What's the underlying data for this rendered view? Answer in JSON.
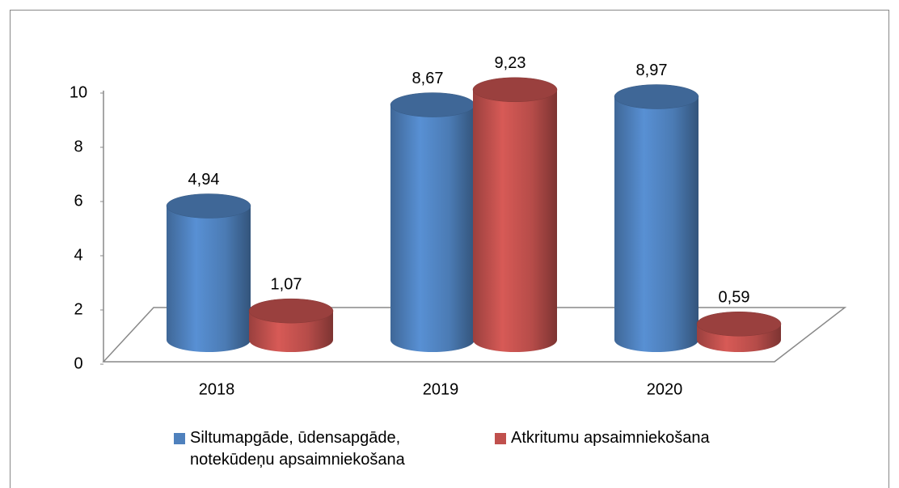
{
  "chart_data": {
    "type": "bar3d",
    "categories": [
      "2018",
      "2019",
      "2020"
    ],
    "series": [
      {
        "name": "Siltumapgāde, ūdensapgāde, notekūdeņu apsaimniekošana",
        "color": "#4f81bd",
        "values": [
          4.94,
          8.67,
          8.97
        ],
        "value_labels": [
          "4,94",
          "8,67",
          "8,97"
        ]
      },
      {
        "name": "Atkritumu apsaimniekošana",
        "color": "#c0504d",
        "values": [
          1.07,
          9.23,
          0.59
        ],
        "value_labels": [
          "1,07",
          "9,23",
          "0,59"
        ]
      }
    ],
    "ylim": [
      0,
      10
    ],
    "yticks": [
      0,
      2,
      4,
      6,
      8,
      10
    ],
    "legend": "bottom"
  }
}
